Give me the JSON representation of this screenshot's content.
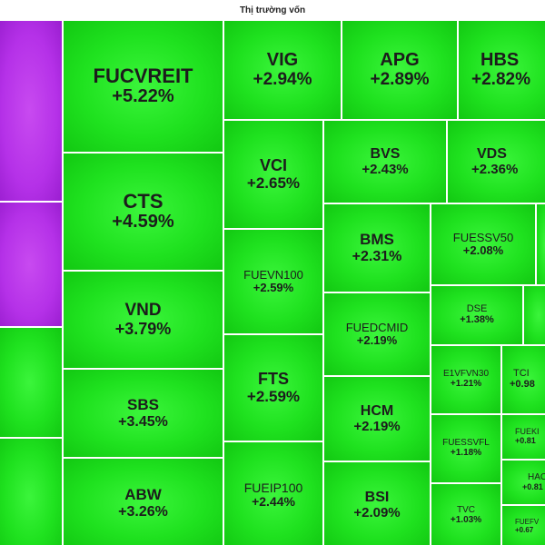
{
  "header": {
    "title": "Thị trường vốn"
  },
  "tiles": {
    "p1": {
      "color": "purple"
    },
    "p2": {
      "color": "purple"
    },
    "g1": {
      "color": "green"
    },
    "g2": {
      "color": "green"
    },
    "fucvreit": {
      "symbol": "FUCVREIT",
      "change": "+5.22%"
    },
    "cts": {
      "symbol": "CTS",
      "change": "+4.59%"
    },
    "vnd": {
      "symbol": "VND",
      "change": "+3.79%"
    },
    "sbs": {
      "symbol": "SBS",
      "change": "+3.45%"
    },
    "abw": {
      "symbol": "ABW",
      "change": "+3.26%"
    },
    "vig": {
      "symbol": "VIG",
      "change": "+2.94%"
    },
    "apg": {
      "symbol": "APG",
      "change": "+2.89%"
    },
    "hbs": {
      "symbol": "HBS",
      "change": "+2.82%"
    },
    "vci": {
      "symbol": "VCI",
      "change": "+2.65%"
    },
    "bvs": {
      "symbol": "BVS",
      "change": "+2.43%"
    },
    "vds": {
      "symbol": "VDS",
      "change": "+2.36%"
    },
    "fuevn100": {
      "symbol": "FUEVN100",
      "change": "+2.59%"
    },
    "bms": {
      "symbol": "BMS",
      "change": "+2.31%"
    },
    "fuessv50": {
      "symbol": "FUESSV50",
      "change": "+2.08%"
    },
    "fuedcmid": {
      "symbol": "FUEDCMID",
      "change": "+2.19%"
    },
    "dse": {
      "symbol": "DSE",
      "change": "+1.38%"
    },
    "fts": {
      "symbol": "FTS",
      "change": "+2.59%"
    },
    "hcm": {
      "symbol": "HCM",
      "change": "+2.19%"
    },
    "e1vfvn30": {
      "symbol": "E1VFVN30",
      "change": "+1.21%"
    },
    "tcx": {
      "symbol": "TCI",
      "change": "+0.98"
    },
    "fueip100": {
      "symbol": "FUEIP100",
      "change": "+2.44%"
    },
    "fuessvfl": {
      "symbol": "FUESSVFL",
      "change": "+1.18%"
    },
    "fuekx": {
      "symbol": "FUEKI",
      "change": "+0.81"
    },
    "bsi": {
      "symbol": "BSI",
      "change": "+2.09%"
    },
    "tvc": {
      "symbol": "TVC",
      "change": "+1.03%"
    },
    "hac": {
      "symbol": "HAC",
      "change": "+0.81"
    },
    "fuefx": {
      "symbol": "FUEFV",
      "change": "+0.67"
    }
  }
}
